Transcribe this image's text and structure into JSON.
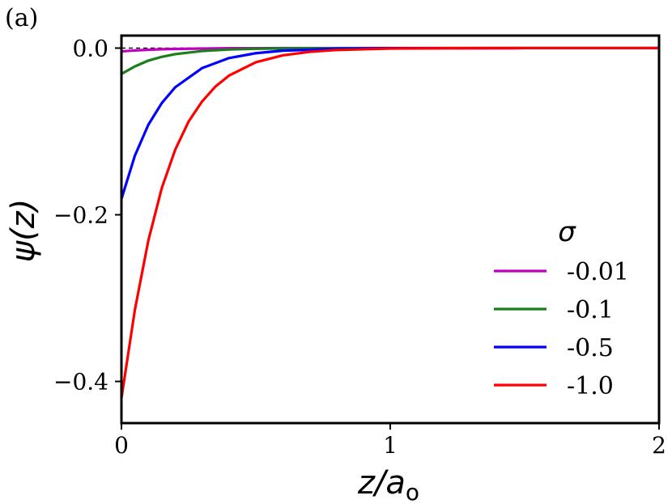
{
  "panel_label": "(a)",
  "chart_data": {
    "type": "line",
    "title": "",
    "xlabel": "z/a",
    "xlabel_subscript": "o",
    "ylabel": "ψ(z)",
    "xlim": [
      0,
      2
    ],
    "ylim": [
      -0.45,
      0.015
    ],
    "xticks": [
      0,
      1,
      2
    ],
    "xtick_labels": [
      "0",
      "1",
      "2"
    ],
    "yticks": [
      0.0,
      -0.2,
      -0.4
    ],
    "ytick_labels": [
      "0.0",
      "−0.2",
      "−0.4"
    ],
    "grid": false,
    "reference_line": {
      "y": 0.0,
      "style": "dashed",
      "color": "#000000"
    },
    "legend": {
      "title": "σ",
      "position": "lower-right"
    },
    "series": [
      {
        "name": "-0.01",
        "color": "#c000c0",
        "x": [
          0,
          0.05,
          0.1,
          0.15,
          0.2,
          0.3,
          0.4,
          0.5,
          0.6,
          0.8,
          1.0,
          1.5,
          2.0
        ],
        "y": [
          -0.004,
          -0.0028,
          -0.002,
          -0.0014,
          -0.001,
          -0.0005,
          -0.0002,
          -0.0001,
          -5e-05,
          0.0,
          0.0,
          0.0,
          0.0
        ]
      },
      {
        "name": "-0.1",
        "color": "#1a7f1a",
        "x": [
          0,
          0.05,
          0.1,
          0.15,
          0.2,
          0.3,
          0.4,
          0.5,
          0.6,
          0.8,
          1.0,
          1.5,
          2.0
        ],
        "y": [
          -0.031,
          -0.022,
          -0.015,
          -0.0105,
          -0.0073,
          -0.0035,
          -0.0017,
          -0.0008,
          -0.0004,
          -0.0001,
          0.0,
          0.0,
          0.0
        ]
      },
      {
        "name": "-0.5",
        "color": "#0000ff",
        "x": [
          0,
          0.05,
          0.1,
          0.15,
          0.2,
          0.3,
          0.4,
          0.5,
          0.6,
          0.8,
          1.0,
          1.5,
          2.0
        ],
        "y": [
          -0.181,
          -0.129,
          -0.092,
          -0.066,
          -0.047,
          -0.024,
          -0.012,
          -0.0061,
          -0.0031,
          -0.0008,
          -0.0002,
          0.0,
          0.0
        ]
      },
      {
        "name": "-1.0",
        "color": "#ff0000",
        "x": [
          0,
          0.05,
          0.1,
          0.15,
          0.2,
          0.25,
          0.3,
          0.35,
          0.4,
          0.5,
          0.6,
          0.7,
          0.8,
          1.0,
          1.2,
          1.5,
          2.0
        ],
        "y": [
          -0.42,
          -0.314,
          -0.231,
          -0.168,
          -0.122,
          -0.088,
          -0.064,
          -0.046,
          -0.033,
          -0.017,
          -0.0087,
          -0.0045,
          -0.0023,
          -0.0006,
          -0.0002,
          0.0,
          0.0
        ]
      }
    ]
  }
}
